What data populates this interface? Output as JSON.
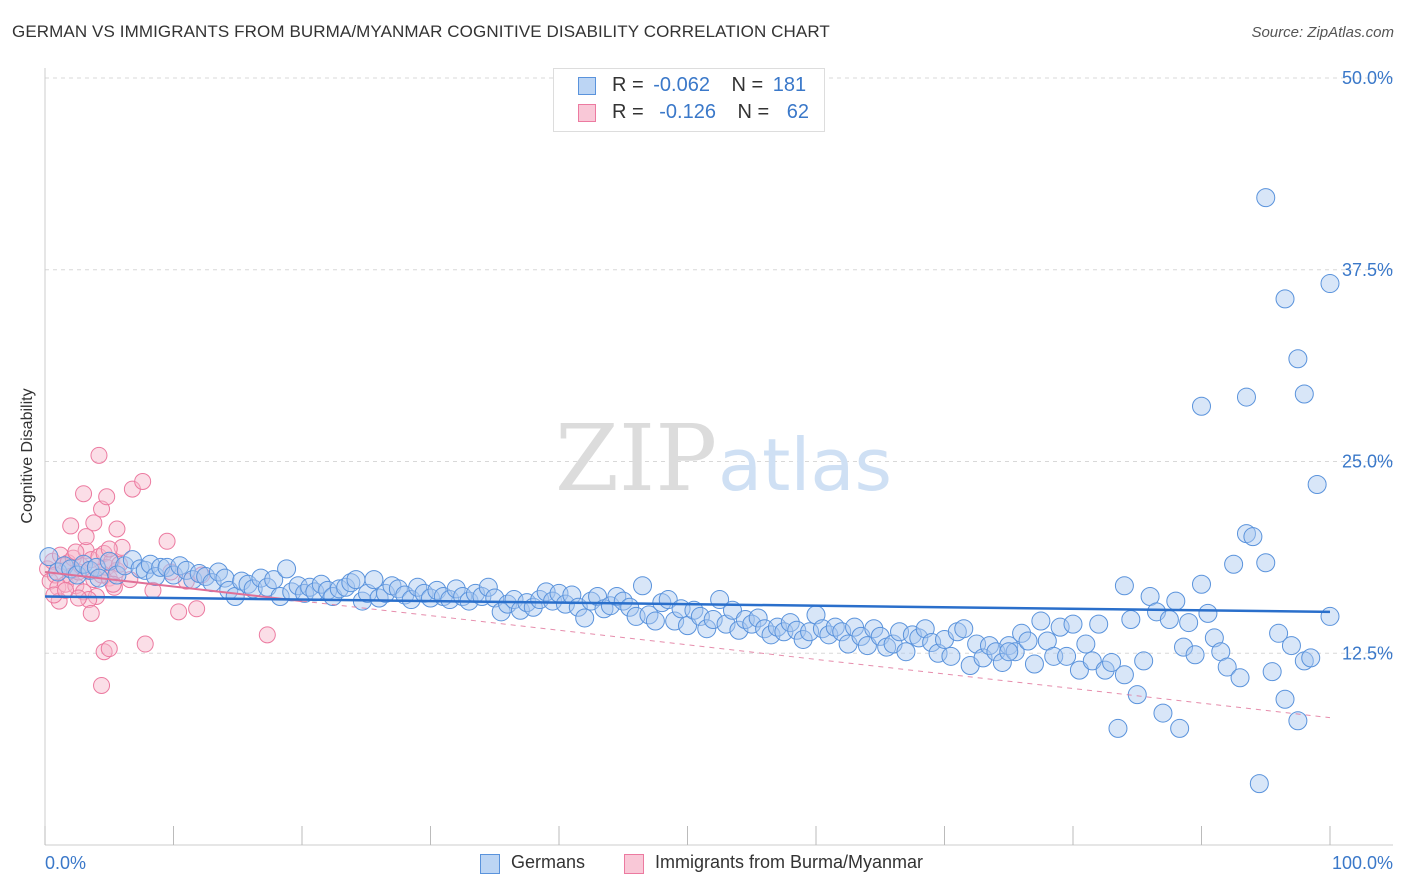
{
  "title": "GERMAN VS IMMIGRANTS FROM BURMA/MYANMAR COGNITIVE DISABILITY CORRELATION CHART",
  "source": "Source: ZipAtlas.com",
  "watermark": {
    "zip": "ZIP",
    "atlas": "atlas"
  },
  "legend": {
    "rows": [
      {
        "r_label": "R =",
        "r_value": "-0.062",
        "n_label": "N =",
        "n_value": "181"
      },
      {
        "r_label": "R =",
        "r_value": "-0.126",
        "n_label": "N =",
        "n_value": "62"
      }
    ]
  },
  "colors": {
    "germans_fill": "#a9c8f0",
    "germans_stroke": "#5a93dc",
    "germans_line": "#2a6fcb",
    "burma_fill": "#f7b6c9",
    "burma_stroke": "#ec7aa0",
    "burma_line": "#e07097",
    "axis_label": "#3a78c9",
    "grid": "#d8d8d8"
  },
  "chart_data": {
    "type": "scatter",
    "title": "GERMAN VS IMMIGRANTS FROM BURMA/MYANMAR COGNITIVE DISABILITY CORRELATION CHART",
    "xlabel": "",
    "ylabel": "Cognitive Disability",
    "xlim": [
      0,
      100
    ],
    "ylim": [
      0,
      50
    ],
    "x_tick_labels": [
      "0.0%",
      "100.0%"
    ],
    "y_tick_labels": [
      "12.5%",
      "25.0%",
      "37.5%",
      "50.0%"
    ],
    "y_ticks": [
      12.5,
      25.0,
      37.5,
      50.0
    ],
    "grid": "horizontal dashed",
    "legend_position": "bottom",
    "series": [
      {
        "name": "Germans",
        "R": -0.062,
        "N": 181,
        "trend": {
          "x": [
            0,
            100
          ],
          "y": [
            16.2,
            15.2
          ]
        },
        "points": [
          [
            0.3,
            18.8
          ],
          [
            1.0,
            17.8
          ],
          [
            1.5,
            18.2
          ],
          [
            2.0,
            18.0
          ],
          [
            2.5,
            17.6
          ],
          [
            3.0,
            18.3
          ],
          [
            3.5,
            17.9
          ],
          [
            4.0,
            18.1
          ],
          [
            4.2,
            17.4
          ],
          [
            5.0,
            18.5
          ],
          [
            5.6,
            17.6
          ],
          [
            6.2,
            18.2
          ],
          [
            6.8,
            18.6
          ],
          [
            7.4,
            18.0
          ],
          [
            7.8,
            17.9
          ],
          [
            8.2,
            18.3
          ],
          [
            8.6,
            17.5
          ],
          [
            9.0,
            18.1
          ],
          [
            9.5,
            18.1
          ],
          [
            10.0,
            17.6
          ],
          [
            10.5,
            18.2
          ],
          [
            11.0,
            17.9
          ],
          [
            11.5,
            17.3
          ],
          [
            12.0,
            17.7
          ],
          [
            12.5,
            17.5
          ],
          [
            13.0,
            17.1
          ],
          [
            13.5,
            17.8
          ],
          [
            14.0,
            17.4
          ],
          [
            14.3,
            16.6
          ],
          [
            14.8,
            16.2
          ],
          [
            15.3,
            17.2
          ],
          [
            15.8,
            17.0
          ],
          [
            16.2,
            16.7
          ],
          [
            16.8,
            17.4
          ],
          [
            17.3,
            16.8
          ],
          [
            17.8,
            17.3
          ],
          [
            18.3,
            16.2
          ],
          [
            18.8,
            18.0
          ],
          [
            19.2,
            16.5
          ],
          [
            19.7,
            16.9
          ],
          [
            20.2,
            16.4
          ],
          [
            20.6,
            16.8
          ],
          [
            21.0,
            16.5
          ],
          [
            21.5,
            17.0
          ],
          [
            22.0,
            16.6
          ],
          [
            22.4,
            16.2
          ],
          [
            22.9,
            16.7
          ],
          [
            23.4,
            16.8
          ],
          [
            23.8,
            17.1
          ],
          [
            24.2,
            17.3
          ],
          [
            24.7,
            15.9
          ],
          [
            25.1,
            16.4
          ],
          [
            25.6,
            17.3
          ],
          [
            26.0,
            16.1
          ],
          [
            26.5,
            16.4
          ],
          [
            27.0,
            16.9
          ],
          [
            27.5,
            16.7
          ],
          [
            28.0,
            16.3
          ],
          [
            28.5,
            16.0
          ],
          [
            29.0,
            16.8
          ],
          [
            29.5,
            16.4
          ],
          [
            30.0,
            16.1
          ],
          [
            30.5,
            16.6
          ],
          [
            31.0,
            16.2
          ],
          [
            31.5,
            16.0
          ],
          [
            32.0,
            16.7
          ],
          [
            32.5,
            16.2
          ],
          [
            33.0,
            15.9
          ],
          [
            33.5,
            16.4
          ],
          [
            34.0,
            16.2
          ],
          [
            34.5,
            16.8
          ],
          [
            35.0,
            16.1
          ],
          [
            35.5,
            15.2
          ],
          [
            36.0,
            15.7
          ],
          [
            36.5,
            16.0
          ],
          [
            37.0,
            15.3
          ],
          [
            37.5,
            15.8
          ],
          [
            38.0,
            15.5
          ],
          [
            38.5,
            16.0
          ],
          [
            39.0,
            16.5
          ],
          [
            39.5,
            15.9
          ],
          [
            40.0,
            16.4
          ],
          [
            40.5,
            15.7
          ],
          [
            41.0,
            16.3
          ],
          [
            41.5,
            15.5
          ],
          [
            42.0,
            14.8
          ],
          [
            42.5,
            15.9
          ],
          [
            43.0,
            16.2
          ],
          [
            43.5,
            15.4
          ],
          [
            44.0,
            15.6
          ],
          [
            44.5,
            16.2
          ],
          [
            45.0,
            15.9
          ],
          [
            45.5,
            15.5
          ],
          [
            46.0,
            14.9
          ],
          [
            46.5,
            16.9
          ],
          [
            47.0,
            15.0
          ],
          [
            47.5,
            14.6
          ],
          [
            48.0,
            15.8
          ],
          [
            48.5,
            16.0
          ],
          [
            49.0,
            14.6
          ],
          [
            49.5,
            15.4
          ],
          [
            50.0,
            14.3
          ],
          [
            50.5,
            15.3
          ],
          [
            51.0,
            14.9
          ],
          [
            51.5,
            14.1
          ],
          [
            52.0,
            14.7
          ],
          [
            52.5,
            16.0
          ],
          [
            53.0,
            14.4
          ],
          [
            53.5,
            15.3
          ],
          [
            54.0,
            14.0
          ],
          [
            54.5,
            14.7
          ],
          [
            55.0,
            14.4
          ],
          [
            55.5,
            14.8
          ],
          [
            56.0,
            14.1
          ],
          [
            56.5,
            13.7
          ],
          [
            57.0,
            14.2
          ],
          [
            57.5,
            13.9
          ],
          [
            58.0,
            14.5
          ],
          [
            58.5,
            14.0
          ],
          [
            59.0,
            13.4
          ],
          [
            59.5,
            13.9
          ],
          [
            60.0,
            15.0
          ],
          [
            60.5,
            14.1
          ],
          [
            61.0,
            13.7
          ],
          [
            61.5,
            14.2
          ],
          [
            62.0,
            13.9
          ],
          [
            62.5,
            13.1
          ],
          [
            63.0,
            14.2
          ],
          [
            63.5,
            13.6
          ],
          [
            64.0,
            13.0
          ],
          [
            64.5,
            14.1
          ],
          [
            65.0,
            13.6
          ],
          [
            65.5,
            12.9
          ],
          [
            66.0,
            13.1
          ],
          [
            66.5,
            13.9
          ],
          [
            67.0,
            12.6
          ],
          [
            67.5,
            13.7
          ],
          [
            68.0,
            13.5
          ],
          [
            68.5,
            14.1
          ],
          [
            69.0,
            13.2
          ],
          [
            69.5,
            12.5
          ],
          [
            70.0,
            13.4
          ],
          [
            70.5,
            12.3
          ],
          [
            71.0,
            13.9
          ],
          [
            71.5,
            14.1
          ],
          [
            72.0,
            11.7
          ],
          [
            72.5,
            13.1
          ],
          [
            73.0,
            12.2
          ],
          [
            73.5,
            13.0
          ],
          [
            74.0,
            12.6
          ],
          [
            74.5,
            11.9
          ],
          [
            75.0,
            13.0
          ],
          [
            75.5,
            12.6
          ],
          [
            76.0,
            13.8
          ],
          [
            76.5,
            13.3
          ],
          [
            77.0,
            11.8
          ],
          [
            77.5,
            14.6
          ],
          [
            78.0,
            13.3
          ],
          [
            78.5,
            12.3
          ],
          [
            79.0,
            14.2
          ],
          [
            79.5,
            12.3
          ],
          [
            80.0,
            14.4
          ],
          [
            80.5,
            11.4
          ],
          [
            81.0,
            13.1
          ],
          [
            81.5,
            12.0
          ],
          [
            82.0,
            14.4
          ],
          [
            82.5,
            11.4
          ],
          [
            83.0,
            11.9
          ],
          [
            83.5,
            7.6
          ],
          [
            84.0,
            11.1
          ],
          [
            84.5,
            14.7
          ],
          [
            85.0,
            9.8
          ],
          [
            85.5,
            12.0
          ],
          [
            86.0,
            16.2
          ],
          [
            86.5,
            15.2
          ],
          [
            87.0,
            8.6
          ],
          [
            87.5,
            14.7
          ],
          [
            88.0,
            15.9
          ],
          [
            88.3,
            7.6
          ],
          [
            88.6,
            12.9
          ],
          [
            89.0,
            14.5
          ],
          [
            89.5,
            12.4
          ],
          [
            90.0,
            17.0
          ],
          [
            90.5,
            15.1
          ],
          [
            91.0,
            13.5
          ],
          [
            91.5,
            12.6
          ],
          [
            92.0,
            11.6
          ],
          [
            92.5,
            18.3
          ],
          [
            93.0,
            10.9
          ],
          [
            93.5,
            20.3
          ],
          [
            94.0,
            20.1
          ],
          [
            94.5,
            4.0
          ],
          [
            95.0,
            18.4
          ],
          [
            95.5,
            11.3
          ],
          [
            96.0,
            13.8
          ],
          [
            96.5,
            9.5
          ],
          [
            97.0,
            13.0
          ],
          [
            97.5,
            8.1
          ],
          [
            98.0,
            12.0
          ],
          [
            98.5,
            12.2
          ],
          [
            75.0,
            12.6
          ],
          [
            84.0,
            16.9
          ],
          [
            90.0,
            28.6
          ],
          [
            93.5,
            29.2
          ],
          [
            95.0,
            42.2
          ],
          [
            96.5,
            35.6
          ],
          [
            97.5,
            31.7
          ],
          [
            98.0,
            29.4
          ],
          [
            99.0,
            23.5
          ],
          [
            100.0,
            36.6
          ],
          [
            100.0,
            14.9
          ]
        ]
      },
      {
        "name": "Immigrants from Burma/Myanmar",
        "R": -0.126,
        "N": 62,
        "trend": {
          "x": [
            0,
            100
          ],
          "y": [
            17.8,
            8.3
          ]
        },
        "points": [
          [
            0.2,
            18.0
          ],
          [
            0.4,
            17.2
          ],
          [
            0.6,
            18.5
          ],
          [
            0.8,
            17.6
          ],
          [
            1.0,
            16.8
          ],
          [
            1.2,
            18.9
          ],
          [
            1.4,
            18.2
          ],
          [
            1.6,
            17.0
          ],
          [
            1.8,
            18.4
          ],
          [
            2.0,
            17.5
          ],
          [
            2.2,
            18.7
          ],
          [
            2.4,
            16.9
          ],
          [
            2.6,
            17.8
          ],
          [
            2.8,
            18.2
          ],
          [
            3.0,
            16.5
          ],
          [
            3.2,
            19.2
          ],
          [
            3.4,
            17.9
          ],
          [
            3.6,
            18.6
          ],
          [
            3.8,
            17.3
          ],
          [
            4.0,
            16.2
          ],
          [
            4.2,
            18.8
          ],
          [
            4.4,
            17.6
          ],
          [
            4.6,
            19.0
          ],
          [
            4.8,
            18.1
          ],
          [
            5.0,
            17.4
          ],
          [
            5.2,
            18.5
          ],
          [
            5.4,
            16.8
          ],
          [
            5.6,
            17.9
          ],
          [
            5.8,
            18.3
          ],
          [
            6.0,
            19.4
          ],
          [
            2.0,
            20.8
          ],
          [
            2.4,
            19.1
          ],
          [
            3.0,
            22.9
          ],
          [
            3.2,
            20.1
          ],
          [
            3.8,
            21.0
          ],
          [
            4.2,
            25.4
          ],
          [
            4.4,
            21.9
          ],
          [
            4.8,
            22.7
          ],
          [
            5.0,
            19.3
          ],
          [
            5.6,
            20.6
          ],
          [
            6.8,
            23.2
          ],
          [
            7.6,
            23.7
          ],
          [
            9.5,
            19.8
          ],
          [
            3.4,
            16.0
          ],
          [
            3.6,
            15.1
          ],
          [
            4.6,
            12.6
          ],
          [
            5.0,
            12.8
          ],
          [
            4.4,
            10.4
          ],
          [
            7.8,
            13.1
          ],
          [
            10.4,
            15.2
          ],
          [
            11.8,
            15.4
          ],
          [
            17.3,
            13.7
          ],
          [
            12.2,
            17.6
          ],
          [
            9.8,
            17.8
          ],
          [
            6.6,
            17.3
          ],
          [
            8.4,
            16.6
          ],
          [
            11.0,
            17.2
          ],
          [
            1.1,
            15.9
          ],
          [
            0.7,
            16.3
          ],
          [
            1.6,
            16.6
          ],
          [
            5.3,
            17.0
          ],
          [
            2.6,
            16.1
          ]
        ]
      }
    ]
  }
}
